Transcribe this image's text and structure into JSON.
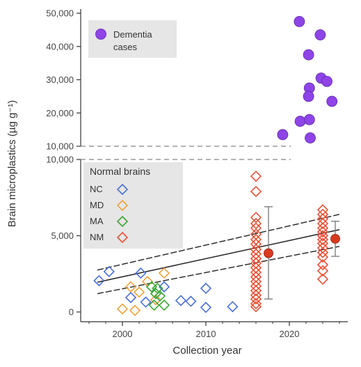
{
  "chart_data": {
    "type": "scatter",
    "xlabel": "Collection year",
    "ylabel": "Brain microplastics (µg g⁻¹)",
    "xlim": [
      1995,
      2027
    ],
    "x_ticks": [
      {
        "value": 2000,
        "label": "2000"
      },
      {
        "value": 2010,
        "label": "2010"
      },
      {
        "value": 2020,
        "label": "2020"
      }
    ],
    "upper_panel": {
      "ylim": [
        10000,
        50000
      ],
      "y_ticks": [
        {
          "value": 10000,
          "label": "10,000"
        },
        {
          "value": 20000,
          "label": "20,000"
        },
        {
          "value": 30000,
          "label": "30,000"
        },
        {
          "value": 40000,
          "label": "40,000"
        },
        {
          "value": 50000,
          "label": "50,000"
        }
      ],
      "legend_label": "Dementia\ncases",
      "legend_lines": [
        "Dementia",
        "cases"
      ],
      "dementia_points": [
        {
          "x": 2019.2,
          "y": 13500
        },
        {
          "x": 2021.2,
          "y": 47500
        },
        {
          "x": 2023.7,
          "y": 43500
        },
        {
          "x": 2022.3,
          "y": 37500
        },
        {
          "x": 2023.8,
          "y": 30500
        },
        {
          "x": 2024.5,
          "y": 29500
        },
        {
          "x": 2022.4,
          "y": 27500
        },
        {
          "x": 2022.3,
          "y": 25000
        },
        {
          "x": 2025.1,
          "y": 23500
        },
        {
          "x": 2021.3,
          "y": 17500
        },
        {
          "x": 2022.4,
          "y": 18000
        },
        {
          "x": 2022.5,
          "y": 12500
        }
      ]
    },
    "lower_panel": {
      "ylim": [
        0,
        10000
      ],
      "y_ticks": [
        {
          "value": 0,
          "label": "0"
        },
        {
          "value": 5000,
          "label": "5,000"
        },
        {
          "value": 10000,
          "label": "10,000"
        }
      ],
      "legend_title": "Normal brains",
      "series": [
        {
          "name": "NC",
          "color": "#4a6fd8",
          "points": [
            {
              "x": 1997.2,
              "y": 2050
            },
            {
              "x": 1998.4,
              "y": 2650
            },
            {
              "x": 2002.2,
              "y": 2550
            },
            {
              "x": 2001.0,
              "y": 950
            },
            {
              "x": 2002.8,
              "y": 650
            },
            {
              "x": 2005.0,
              "y": 1650
            },
            {
              "x": 2007.0,
              "y": 750
            },
            {
              "x": 2008.2,
              "y": 700
            },
            {
              "x": 2010.0,
              "y": 1550
            },
            {
              "x": 2010.0,
              "y": 300
            },
            {
              "x": 2013.2,
              "y": 350
            }
          ]
        },
        {
          "name": "MD",
          "color": "#eea33a",
          "points": [
            {
              "x": 2000.0,
              "y": 200
            },
            {
              "x": 2001.0,
              "y": 1650
            },
            {
              "x": 2002.0,
              "y": 1300
            },
            {
              "x": 2003.0,
              "y": 2000
            },
            {
              "x": 2004.0,
              "y": 800
            },
            {
              "x": 2005.0,
              "y": 2550
            },
            {
              "x": 2001.5,
              "y": 100
            }
          ]
        },
        {
          "name": "MA",
          "color": "#3aa535",
          "points": [
            {
              "x": 2003.5,
              "y": 1650
            },
            {
              "x": 2004.0,
              "y": 1200
            },
            {
              "x": 2004.5,
              "y": 1050
            },
            {
              "x": 2003.8,
              "y": 450
            },
            {
              "x": 2005.0,
              "y": 450
            },
            {
              "x": 2004.2,
              "y": 1550
            }
          ]
        },
        {
          "name": "NM",
          "color": "#ea5236",
          "points": [
            {
              "x": 2016,
              "y": 8900
            },
            {
              "x": 2016,
              "y": 7900
            },
            {
              "x": 2016,
              "y": 6200
            },
            {
              "x": 2016,
              "y": 5800
            },
            {
              "x": 2016,
              "y": 5500
            },
            {
              "x": 2016,
              "y": 5100
            },
            {
              "x": 2016,
              "y": 4750
            },
            {
              "x": 2016,
              "y": 4450
            },
            {
              "x": 2016,
              "y": 4100
            },
            {
              "x": 2016,
              "y": 3800
            },
            {
              "x": 2016,
              "y": 3500
            },
            {
              "x": 2016,
              "y": 3200
            },
            {
              "x": 2016,
              "y": 2900
            },
            {
              "x": 2016,
              "y": 2600
            },
            {
              "x": 2016,
              "y": 2300
            },
            {
              "x": 2016,
              "y": 2000
            },
            {
              "x": 2016,
              "y": 1700
            },
            {
              "x": 2016,
              "y": 1400
            },
            {
              "x": 2016,
              "y": 1100
            },
            {
              "x": 2016,
              "y": 850
            },
            {
              "x": 2016,
              "y": 550
            },
            {
              "x": 2016,
              "y": 350
            },
            {
              "x": 2024,
              "y": 6700
            },
            {
              "x": 2024,
              "y": 6400
            },
            {
              "x": 2024,
              "y": 6100
            },
            {
              "x": 2024,
              "y": 5800
            },
            {
              "x": 2024,
              "y": 5500
            },
            {
              "x": 2024,
              "y": 5250
            },
            {
              "x": 2024,
              "y": 5000
            },
            {
              "x": 2024,
              "y": 4750
            },
            {
              "x": 2024,
              "y": 4500
            },
            {
              "x": 2024,
              "y": 4200
            },
            {
              "x": 2024,
              "y": 3900
            },
            {
              "x": 2024,
              "y": 3600
            },
            {
              "x": 2024,
              "y": 3100
            },
            {
              "x": 2024,
              "y": 2700
            },
            {
              "x": 2024,
              "y": 2150
            }
          ]
        }
      ],
      "group_means": [
        {
          "x": 2017.5,
          "y": 3850,
          "err_low": 850,
          "err_high": 6900,
          "color": "#d93a1f"
        },
        {
          "x": 2025.5,
          "y": 4800,
          "err_low": 3650,
          "err_high": 5950,
          "color": "#d93a1f"
        }
      ],
      "regression": {
        "x_range": [
          1997,
          2026
        ],
        "fit": [
          1950,
          5400
        ],
        "ci_low": [
          1200,
          4300
        ],
        "ci_high": [
          2750,
          6400
        ]
      }
    }
  }
}
